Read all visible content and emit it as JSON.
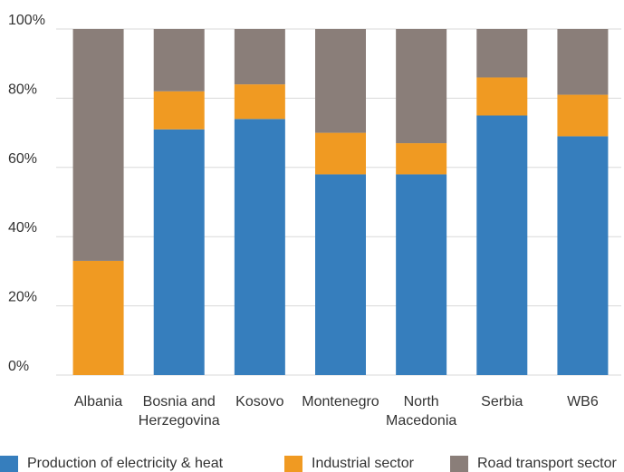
{
  "chart_data": {
    "type": "bar",
    "stacked": true,
    "categories": [
      [
        "Albania"
      ],
      [
        "Bosnia and",
        "Herzegovina"
      ],
      [
        "Kosovo"
      ],
      [
        "Montenegro"
      ],
      [
        "North",
        "Macedonia"
      ],
      [
        "Serbia"
      ],
      [
        "WB6"
      ]
    ],
    "series": [
      {
        "name": "Production of electricity & heat",
        "color": "#367EBD",
        "values": [
          0,
          71,
          74,
          58,
          58,
          75,
          69
        ]
      },
      {
        "name": "Industrial sector",
        "color": "#F09A22",
        "values": [
          33,
          11,
          10,
          12,
          9,
          11,
          12
        ]
      },
      {
        "name": "Road transport sector",
        "color": "#8A7E79",
        "values": [
          67,
          18,
          16,
          30,
          33,
          14,
          19
        ]
      }
    ],
    "ylim": [
      0,
      100
    ],
    "yticks": [
      "0%",
      "20%",
      "40%",
      "60%",
      "80%",
      "100%"
    ],
    "grid": true,
    "legend_position": "bottom"
  }
}
